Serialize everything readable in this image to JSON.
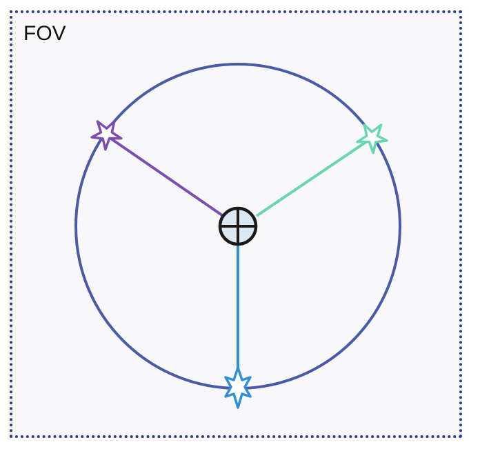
{
  "fov_label": "FOV",
  "colors": {
    "frame": "#2b3a8f",
    "circle": "#4a5aa6",
    "purple_arm": "#7a4fb0",
    "teal_arm": "#6ad6b0",
    "blue_arm": "#2f8fd8",
    "center_fill": "#dde8f0",
    "center_stroke": "#1a1a1a"
  },
  "icons": {
    "center": "crosshair-circle-icon",
    "markers": [
      "star-icon",
      "star-icon",
      "star-icon"
    ]
  }
}
